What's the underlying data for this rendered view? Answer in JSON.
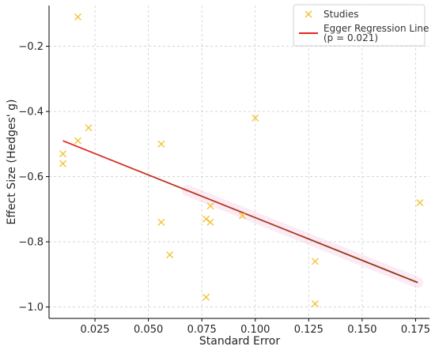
{
  "chart_data": {
    "type": "scatter",
    "xlabel": "Standard Error",
    "ylabel": "Effect Size (Hedges' g)",
    "xlim": [
      0.0035,
      0.1815
    ],
    "ylim": [
      -1.035,
      -0.075
    ],
    "x_ticks": [
      0.025,
      0.05,
      0.075,
      0.1,
      0.125,
      0.15,
      0.175
    ],
    "x_tick_labels": [
      "0.025",
      "0.050",
      "0.075",
      "0.100",
      "0.125",
      "0.150",
      "0.175"
    ],
    "y_ticks": [
      -1.0,
      -0.8,
      -0.6,
      -0.4,
      -0.2
    ],
    "y_tick_labels": [
      "−1.0",
      "−0.8",
      "−0.6",
      "−0.4",
      "−0.2"
    ],
    "grid": true,
    "legend_position": "top-right",
    "series": [
      {
        "name": "Studies",
        "kind": "scatter",
        "marker": "x",
        "color": "#f2c12e",
        "x": [
          0.017,
          0.01,
          0.01,
          0.017,
          0.022,
          0.056,
          0.056,
          0.06,
          0.077,
          0.077,
          0.079,
          0.079,
          0.094,
          0.1,
          0.128,
          0.128,
          0.177
        ],
        "y": [
          -0.11,
          -0.53,
          -0.56,
          -0.49,
          -0.45,
          -0.5,
          -0.74,
          -0.84,
          -0.97,
          -0.73,
          -0.69,
          -0.74,
          -0.72,
          -0.42,
          -0.86,
          -0.99,
          -0.68
        ]
      },
      {
        "name": "Egger Regression Line",
        "name_line2": "(p = 0.021)",
        "kind": "line",
        "color": "#e8241f",
        "x": [
          0.01,
          0.176
        ],
        "y": [
          -0.49,
          -0.925
        ]
      }
    ]
  }
}
